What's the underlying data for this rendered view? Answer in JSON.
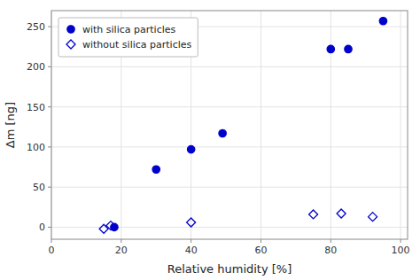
{
  "chart_data": {
    "type": "scatter",
    "xlabel": "Relative humidity [%]",
    "ylabel": "Δm [ng]",
    "xlim": [
      0,
      102
    ],
    "ylim": [
      -15,
      270
    ],
    "xticks": [
      0,
      20,
      40,
      60,
      80,
      100
    ],
    "yticks": [
      0,
      50,
      100,
      150,
      200,
      250
    ],
    "grid": true,
    "legend": "upper left",
    "series": [
      {
        "name": "with silica particles",
        "color": "#0000cc",
        "marker": "circle",
        "x": [
          18,
          30,
          40,
          49,
          80,
          85,
          95
        ],
        "values": [
          0,
          72,
          97,
          117,
          222,
          222,
          257
        ]
      },
      {
        "name": "without silica particles",
        "color": "#0000cc",
        "marker": "open_diamond",
        "x": [
          15,
          17,
          40,
          75,
          83,
          92
        ],
        "values": [
          -2,
          2,
          6,
          16,
          17,
          13
        ]
      }
    ]
  }
}
